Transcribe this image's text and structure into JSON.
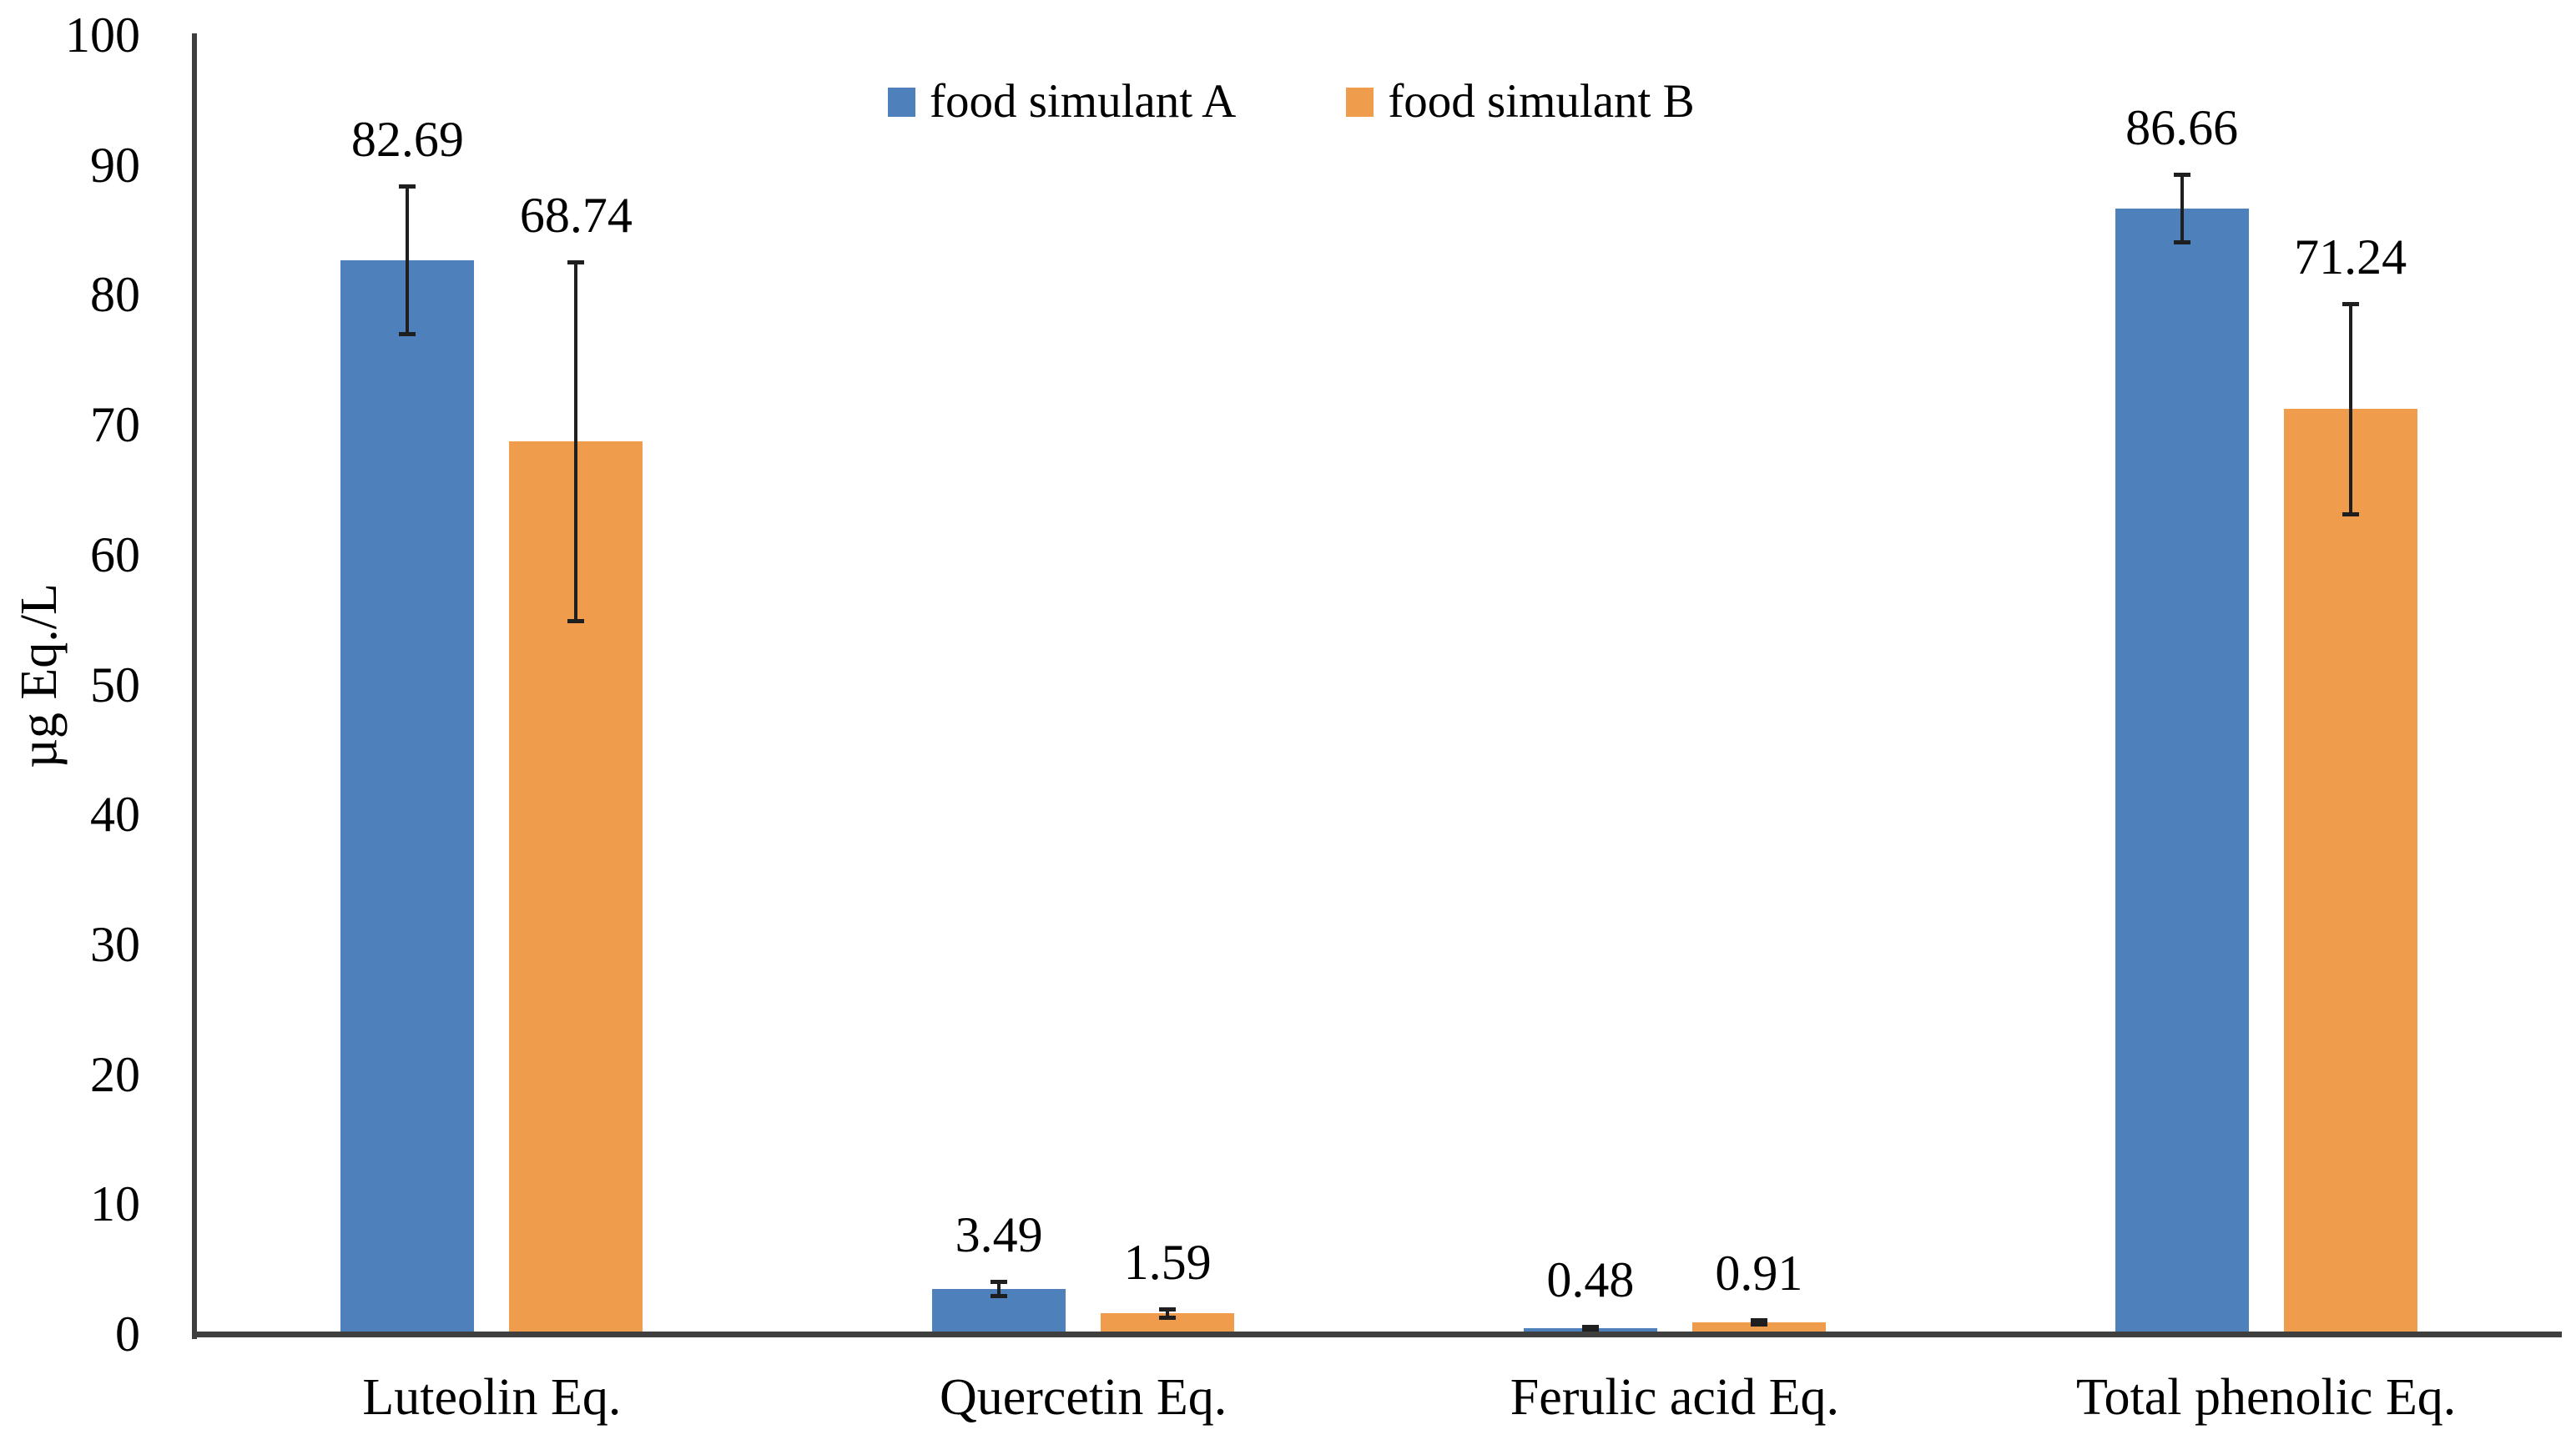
{
  "chart_data": {
    "type": "bar",
    "title": "",
    "xlabel": "",
    "ylabel": "µg Eq./L",
    "ylim": [
      0,
      100
    ],
    "yticks": [
      0,
      10,
      20,
      30,
      40,
      50,
      60,
      70,
      80,
      90,
      100
    ],
    "grid": false,
    "legend_position": "top-center",
    "categories": [
      "Luteolin Eq.",
      "Quercetin Eq.",
      "Ferulic acid Eq.",
      "Total phenolic Eq."
    ],
    "series": [
      {
        "name": "food simulant A",
        "color": "#4e80bc",
        "values": [
          82.69,
          3.49,
          0.48,
          86.66
        ],
        "errors": [
          5.7,
          0.55,
          0.12,
          2.6
        ],
        "data_labels": [
          "82.69",
          "3.49",
          "0.48",
          "86.66"
        ]
      },
      {
        "name": "food simulant B",
        "color": "#f09c4d",
        "values": [
          68.74,
          1.59,
          0.91,
          71.24
        ],
        "errors": [
          13.8,
          0.33,
          0.17,
          8.1
        ],
        "data_labels": [
          "68.74",
          "1.59",
          "0.91",
          "71.24"
        ]
      }
    ],
    "error_bar_color": "#1f1f1f",
    "axis_color": "#3f3f3f",
    "text_color": "#000000"
  }
}
